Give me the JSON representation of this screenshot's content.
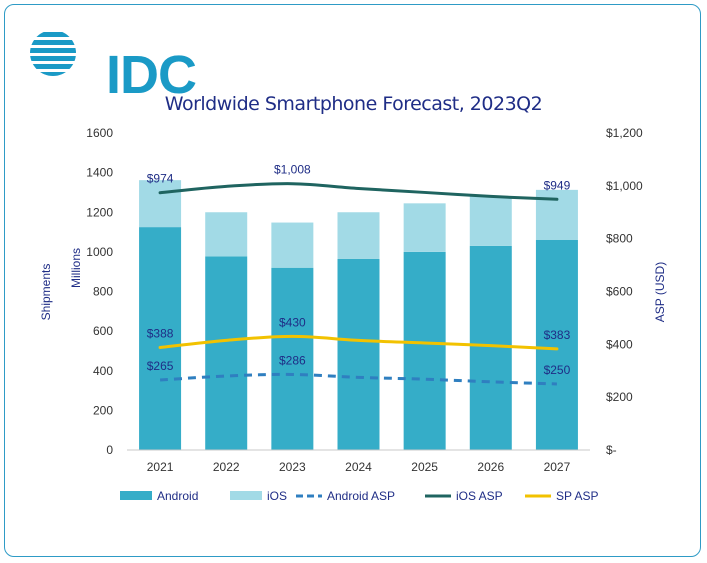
{
  "logo": {
    "text": "IDC",
    "color": "#1a9ac6"
  },
  "chart_data": {
    "type": "bar",
    "title": "Worldwide Smartphone Forecast, 2023Q2",
    "categories": [
      "2021",
      "2022",
      "2023",
      "2024",
      "2025",
      "2026",
      "2027"
    ],
    "stacked": true,
    "series": [
      {
        "name": "Android",
        "type": "bar",
        "axis": "left",
        "color": "#35adc8",
        "values": [
          1125,
          977,
          920,
          965,
          1000,
          1030,
          1060
        ]
      },
      {
        "name": "iOS",
        "type": "bar",
        "axis": "left",
        "color": "#a2dae6",
        "values": [
          237,
          223,
          228,
          235,
          245,
          250,
          253
        ]
      },
      {
        "name": "Android ASP",
        "type": "line",
        "axis": "right",
        "style": "dashed",
        "color": "#2f7fc0",
        "values": [
          265,
          280,
          286,
          275,
          268,
          258,
          250
        ]
      },
      {
        "name": "iOS ASP",
        "type": "line",
        "axis": "right",
        "style": "solid",
        "color": "#1f6460",
        "values": [
          974,
          998,
          1008,
          990,
          975,
          960,
          949
        ]
      },
      {
        "name": "SP ASP",
        "type": "line",
        "axis": "right",
        "style": "solid",
        "color": "#f2c200",
        "values": [
          388,
          415,
          430,
          415,
          405,
          395,
          383
        ]
      }
    ],
    "y_left": {
      "label_outer": "Shipments",
      "label_inner": "Millions",
      "range": [
        0,
        1600
      ],
      "ticks": [
        "0",
        "200",
        "400",
        "600",
        "800",
        "1000",
        "1200",
        "1400",
        "1600"
      ]
    },
    "y_right": {
      "label": "ASP (USD)",
      "range": [
        0,
        1200
      ],
      "ticks": [
        "$-",
        "$200",
        "$400",
        "$600",
        "$800",
        "$1,000",
        "$1,200"
      ]
    },
    "data_labels": [
      {
        "series": "iOS ASP",
        "index": 0,
        "text": "$974"
      },
      {
        "series": "iOS ASP",
        "index": 2,
        "text": "$1,008"
      },
      {
        "series": "iOS ASP",
        "index": 6,
        "text": "$949"
      },
      {
        "series": "SP ASP",
        "index": 0,
        "text": "$388"
      },
      {
        "series": "SP ASP",
        "index": 2,
        "text": "$430"
      },
      {
        "series": "SP ASP",
        "index": 6,
        "text": "$383"
      },
      {
        "series": "Android ASP",
        "index": 0,
        "text": "$265"
      },
      {
        "series": "Android ASP",
        "index": 2,
        "text": "$286"
      },
      {
        "series": "Android ASP",
        "index": 6,
        "text": "$250"
      }
    ],
    "grid": false,
    "legend_position": "bottom"
  }
}
